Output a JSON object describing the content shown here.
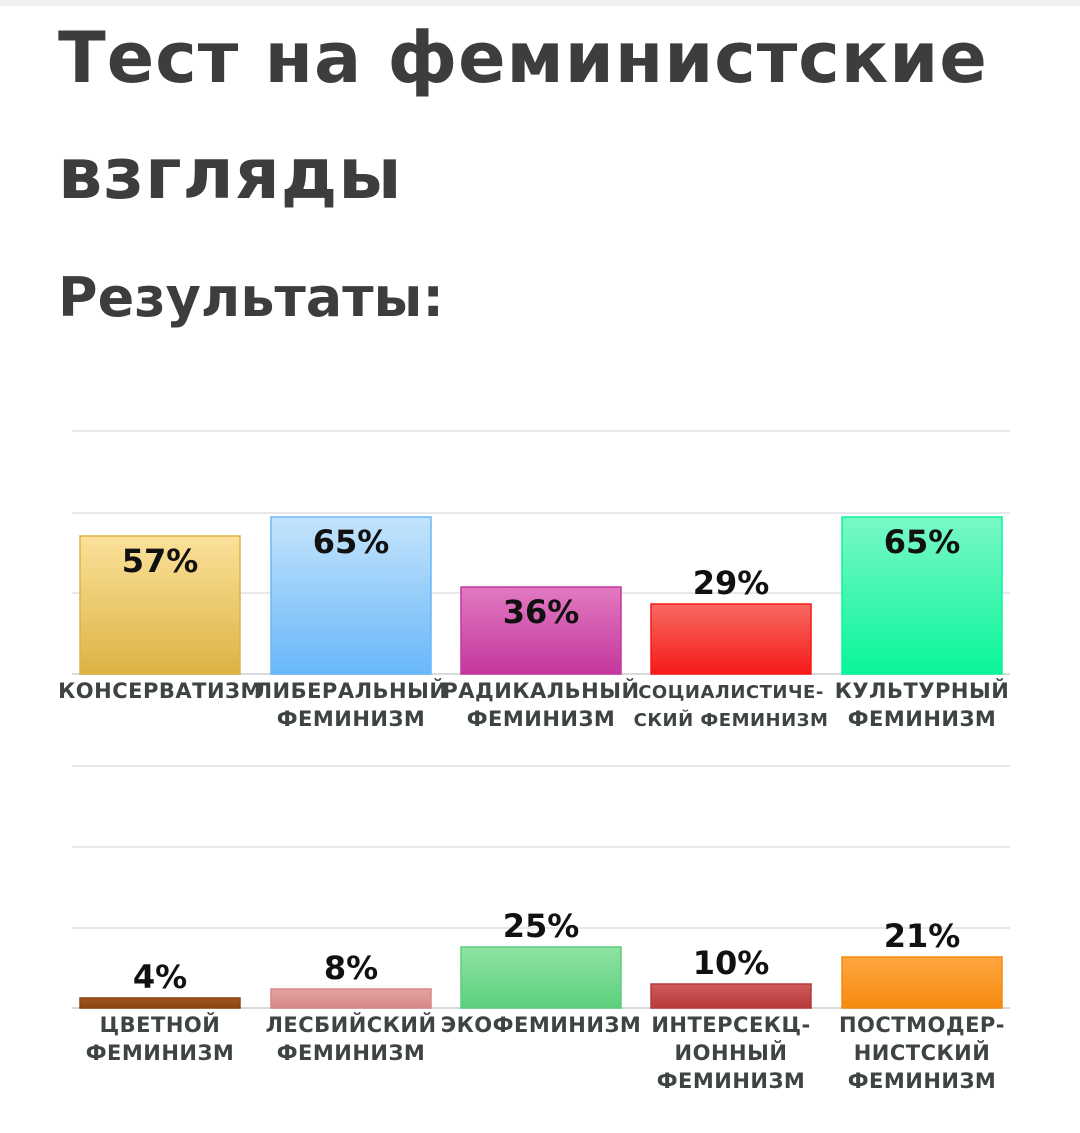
{
  "page": {
    "title": "Тест на феминистские взгляды",
    "subtitle": "Результаты:"
  },
  "chart_data": [
    {
      "type": "bar",
      "categories": [
        [
          "КОНСЕРВАТИЗМ"
        ],
        [
          "ЛИБЕРАЛЬНЫЙ",
          "ФЕМИНИЗМ"
        ],
        [
          "РАДИКАЛЬНЫЙ",
          "ФЕМИНИЗМ"
        ],
        [
          "СОЦИАЛИСТИЧЕ-",
          "СКИЙ ФЕМИНИЗМ"
        ],
        [
          "КУЛЬТУРНЫЙ",
          "ФЕМИНИЗМ"
        ]
      ],
      "values": [
        57,
        65,
        36,
        29,
        65
      ],
      "labels": [
        "57%",
        "65%",
        "36%",
        "29%",
        "65%"
      ],
      "colors": [
        [
          "#fbe19a",
          "#dcb344"
        ],
        [
          "#c4e4fb",
          "#68b7fa"
        ],
        [
          "#e27ac2",
          "#c3379c"
        ],
        [
          "#f76a63",
          "#f51a18"
        ],
        [
          "#7af8c6",
          "#09f59a"
        ]
      ],
      "ylim": [
        0,
        100
      ],
      "grid": true
    },
    {
      "type": "bar",
      "categories": [
        [
          "ЦВЕТНОЙ",
          "ФЕМИНИЗМ"
        ],
        [
          "ЛЕСБИЙСКИЙ",
          "ФЕМИНИЗМ"
        ],
        [
          "ЭКОФЕМИНИЗМ"
        ],
        [
          "ИНТЕРСЕКЦ-",
          "ИОННЫЙ",
          "ФЕМИНИЗМ"
        ],
        [
          "ПОСТМОДЕР-",
          "НИСТСКИЙ",
          "ФЕМИНИЗМ"
        ]
      ],
      "values": [
        4,
        8,
        25,
        10,
        21
      ],
      "labels": [
        "4%",
        "8%",
        "25%",
        "10%",
        "21%"
      ],
      "colors": [
        [
          "#a0541c",
          "#8a4410"
        ],
        [
          "#e5a3a3",
          "#d68888"
        ],
        [
          "#8ee3a3",
          "#5ccf7d"
        ],
        [
          "#cf5b5b",
          "#b73a3a"
        ],
        [
          "#ffa640",
          "#f58a10"
        ]
      ],
      "ylim": [
        0,
        100
      ],
      "grid": true
    }
  ]
}
